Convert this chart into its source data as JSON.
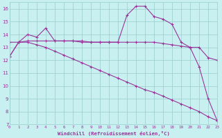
{
  "background_color": "#c8f0f0",
  "grid_color": "#99cccc",
  "line_color": "#993399",
  "xlabel": "Windchill (Refroidissement éolien,°C)",
  "xlim": [
    0,
    23
  ],
  "ylim": [
    7,
    16.5
  ],
  "yticks": [
    7,
    8,
    9,
    10,
    11,
    12,
    13,
    14,
    15,
    16
  ],
  "xticks": [
    0,
    1,
    2,
    3,
    4,
    5,
    6,
    7,
    8,
    9,
    10,
    11,
    12,
    13,
    14,
    15,
    16,
    17,
    18,
    19,
    20,
    21,
    22,
    23
  ],
  "line1_x": [
    0,
    1,
    2,
    3,
    4,
    5,
    6,
    7,
    8,
    9,
    10,
    11,
    12,
    13,
    14,
    15,
    16,
    17,
    18,
    19,
    20,
    21,
    22,
    23
  ],
  "line1_y": [
    12.3,
    13.4,
    14.0,
    13.8,
    14.5,
    13.5,
    13.5,
    13.5,
    13.5,
    13.4,
    13.4,
    13.4,
    13.4,
    15.5,
    16.2,
    16.2,
    15.4,
    15.2,
    14.8,
    13.4,
    13.0,
    11.5,
    9.0,
    7.3
  ],
  "line2_x": [
    0,
    1,
    2,
    3,
    4,
    5,
    6,
    7,
    8,
    9,
    10,
    11,
    12,
    13,
    14,
    15,
    16,
    17,
    18,
    19,
    20,
    21,
    22,
    23
  ],
  "line2_y": [
    13.4,
    13.4,
    13.5,
    13.5,
    13.5,
    13.5,
    13.5,
    13.5,
    13.4,
    13.4,
    13.4,
    13.4,
    13.4,
    13.4,
    13.4,
    13.4,
    13.4,
    13.3,
    13.2,
    13.1,
    13.0,
    13.0,
    12.2,
    12.0
  ],
  "line3_x": [
    0,
    1,
    2,
    3,
    4,
    5,
    6,
    7,
    8,
    9,
    10,
    11,
    12,
    13,
    14,
    15,
    16,
    17,
    18,
    19,
    20,
    21,
    22,
    23
  ],
  "line3_y": [
    12.3,
    13.4,
    13.4,
    13.2,
    13.0,
    12.7,
    12.4,
    12.1,
    11.8,
    11.5,
    11.2,
    10.9,
    10.6,
    10.3,
    10.0,
    9.7,
    9.5,
    9.2,
    8.9,
    8.6,
    8.3,
    8.0,
    7.6,
    7.3
  ]
}
